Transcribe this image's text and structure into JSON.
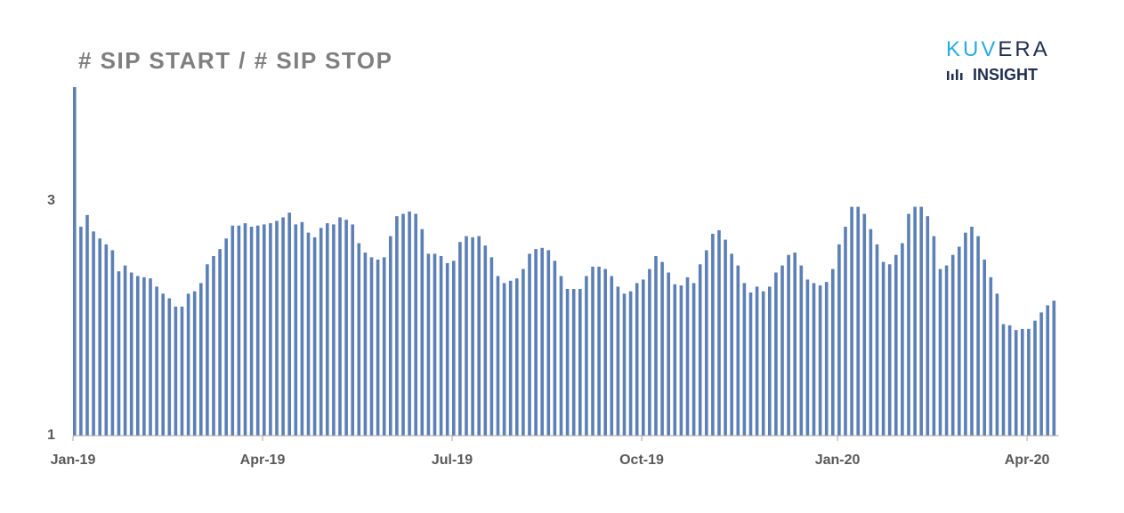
{
  "logo": {
    "brand": [
      "KUV",
      "ERA"
    ],
    "tagline": "INSIGHT"
  },
  "chart_data": {
    "type": "bar",
    "title": "# SIP START / # SIP STOP",
    "categories": [
      "Jan-19",
      null,
      null,
      null,
      null,
      null,
      null,
      null,
      null,
      null,
      null,
      null,
      null,
      null,
      null,
      null,
      null,
      null,
      null,
      null,
      null,
      null,
      null,
      null,
      null,
      null,
      null,
      null,
      null,
      null,
      "Apr-19",
      null,
      null,
      null,
      null,
      null,
      null,
      null,
      null,
      null,
      null,
      null,
      null,
      null,
      null,
      null,
      null,
      null,
      null,
      null,
      null,
      null,
      null,
      null,
      null,
      null,
      null,
      null,
      null,
      null,
      "Jul-19",
      null,
      null,
      null,
      null,
      null,
      null,
      null,
      null,
      null,
      null,
      null,
      null,
      null,
      null,
      null,
      null,
      null,
      null,
      null,
      null,
      null,
      null,
      null,
      null,
      null,
      null,
      null,
      null,
      null,
      "Oct-19",
      null,
      null,
      null,
      null,
      null,
      null,
      null,
      null,
      null,
      null,
      null,
      null,
      null,
      null,
      null,
      null,
      null,
      null,
      null,
      null,
      null,
      null,
      null,
      null,
      null,
      null,
      null,
      null,
      null,
      null,
      "Jan-20",
      null,
      null,
      null,
      null,
      null,
      null,
      null,
      null,
      null,
      null,
      null,
      null,
      null,
      null,
      null,
      null,
      null,
      null,
      null,
      null,
      null,
      null,
      null,
      null,
      null,
      null,
      null,
      null,
      null,
      "Apr-20",
      null,
      null,
      null,
      null
    ],
    "values": [
      3.97,
      2.78,
      2.88,
      2.74,
      2.68,
      2.63,
      2.58,
      2.4,
      2.45,
      2.39,
      2.36,
      2.35,
      2.34,
      2.27,
      2.21,
      2.17,
      2.1,
      2.1,
      2.21,
      2.23,
      2.3,
      2.46,
      2.53,
      2.59,
      2.68,
      2.79,
      2.79,
      2.81,
      2.78,
      2.79,
      2.8,
      2.81,
      2.83,
      2.86,
      2.9,
      2.8,
      2.82,
      2.73,
      2.69,
      2.77,
      2.81,
      2.8,
      2.86,
      2.84,
      2.8,
      2.64,
      2.56,
      2.52,
      2.5,
      2.52,
      2.7,
      2.87,
      2.89,
      2.91,
      2.89,
      2.76,
      2.55,
      2.55,
      2.53,
      2.47,
      2.49,
      2.65,
      2.7,
      2.69,
      2.7,
      2.62,
      2.52,
      2.36,
      2.3,
      2.32,
      2.34,
      2.42,
      2.55,
      2.59,
      2.6,
      2.58,
      2.49,
      2.36,
      2.25,
      2.25,
      2.25,
      2.36,
      2.44,
      2.44,
      2.42,
      2.36,
      2.27,
      2.21,
      2.23,
      2.3,
      2.33,
      2.42,
      2.53,
      2.48,
      2.39,
      2.29,
      2.28,
      2.35,
      2.3,
      2.46,
      2.58,
      2.72,
      2.75,
      2.67,
      2.55,
      2.45,
      2.3,
      2.22,
      2.27,
      2.23,
      2.27,
      2.39,
      2.45,
      2.54,
      2.56,
      2.45,
      2.33,
      2.3,
      2.28,
      2.31,
      2.42,
      2.63,
      2.78,
      2.95,
      2.95,
      2.89,
      2.76,
      2.63,
      2.48,
      2.46,
      2.54,
      2.64,
      2.89,
      2.95,
      2.95,
      2.87,
      2.7,
      2.42,
      2.45,
      2.54,
      2.61,
      2.73,
      2.78,
      2.7,
      2.5,
      2.35,
      2.21,
      1.95,
      1.94,
      1.9,
      1.91,
      1.91,
      1.98,
      2.05,
      2.11,
      2.15
    ],
    "color": "#5b7fb6",
    "ylim": [
      1,
      4
    ],
    "yticks": [
      1,
      3
    ],
    "grid": false
  }
}
